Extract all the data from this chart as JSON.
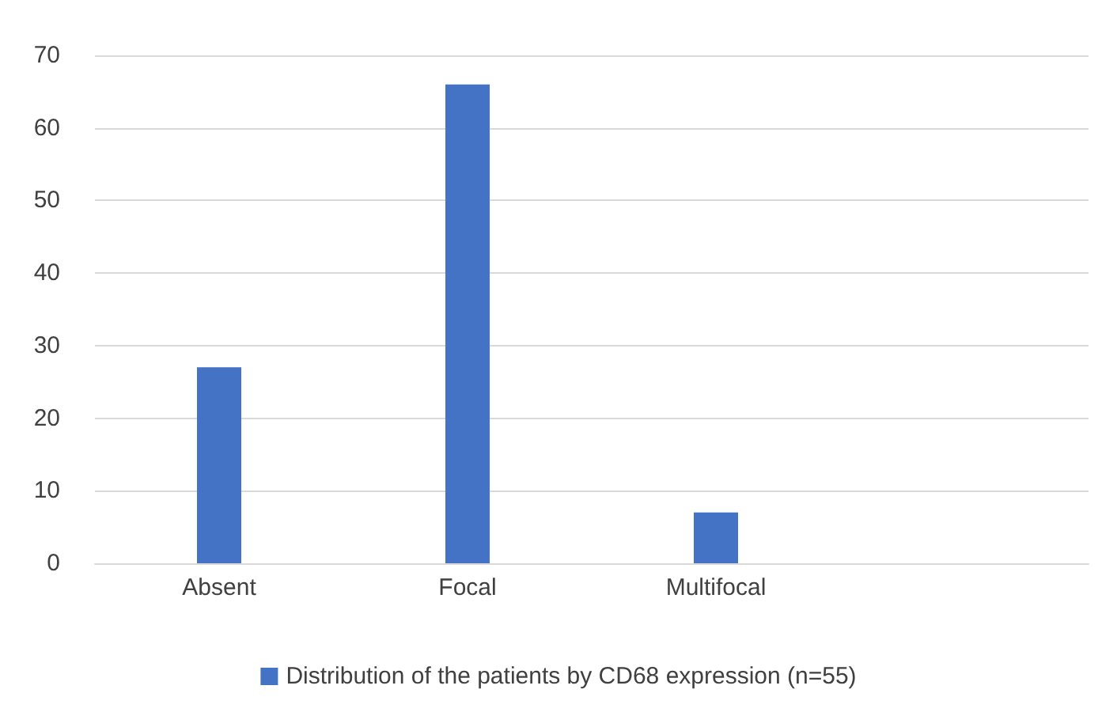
{
  "chart_data": {
    "type": "bar",
    "categories": [
      "Absent",
      "Focal",
      "Multifocal",
      null
    ],
    "series": [
      {
        "name": "Distribution of the patients by CD68 expression (n=55)",
        "color": "#4472c4",
        "values": [
          27,
          66,
          7,
          null
        ]
      }
    ],
    "ylim": [
      0,
      70
    ],
    "yticks": [
      0,
      10,
      20,
      30,
      40,
      50,
      60,
      70
    ],
    "grid": "y",
    "legend": "bottom"
  }
}
